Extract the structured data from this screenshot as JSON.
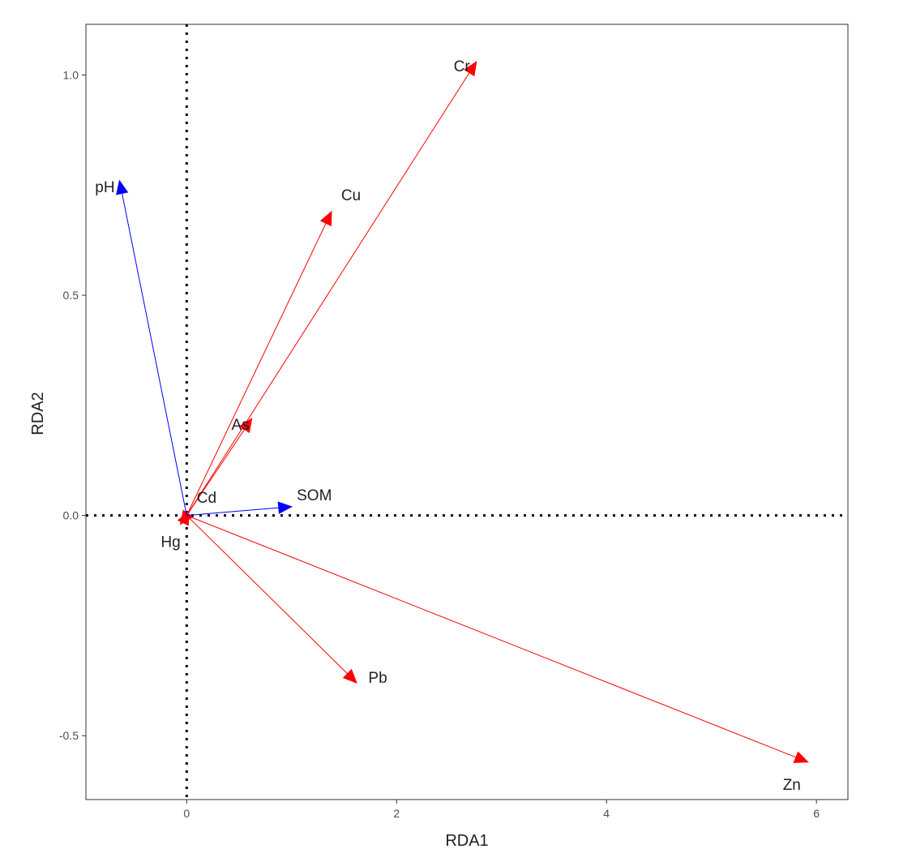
{
  "chart_data": {
    "type": "scatter",
    "subtype": "rda-biplot",
    "xlabel": "RDA1",
    "ylabel": "RDA2",
    "xlim": [
      -0.96,
      6.3
    ],
    "ylim": [
      -0.645,
      1.115
    ],
    "x_ticks": [
      0,
      2,
      4,
      6
    ],
    "y_ticks": [
      -0.5,
      0.0,
      0.5,
      1.0
    ],
    "x_tick_labels": [
      "0",
      "2",
      "4",
      "6"
    ],
    "y_tick_labels": [
      "-0.5",
      "0.0",
      "0.5",
      "1.0"
    ],
    "grid": false,
    "reference_lines": {
      "x": 0,
      "y": 0,
      "style": "dotted"
    },
    "colors": {
      "response": "#ff0000",
      "explanatory": "#0000ff"
    },
    "series": [
      {
        "name": "",
        "color": "#ff0000",
        "vectors": [
          {
            "label": "Cr",
            "x": 2.76,
            "y": 1.03
          },
          {
            "label": "Cu",
            "x": 1.38,
            "y": 0.69
          },
          {
            "label": "As",
            "x": 0.62,
            "y": 0.22
          },
          {
            "label": "Cd",
            "x": 0.02,
            "y": 0.01
          },
          {
            "label": "Hg",
            "x": -0.06,
            "y": -0.02
          },
          {
            "label": "Pb",
            "x": 1.62,
            "y": -0.38
          },
          {
            "label": "Zn",
            "x": 5.92,
            "y": -0.56
          }
        ]
      },
      {
        "name": "",
        "color": "#0000ff",
        "vectors": [
          {
            "label": "pH",
            "x": -0.64,
            "y": 0.76
          },
          {
            "label": "SOM",
            "x": 1.0,
            "y": 0.02
          }
        ]
      }
    ]
  }
}
